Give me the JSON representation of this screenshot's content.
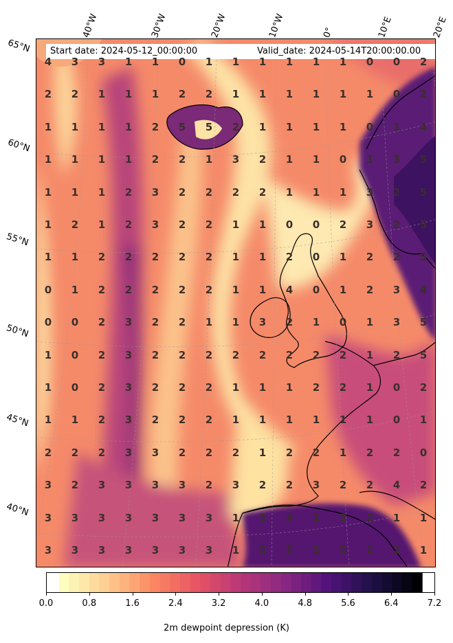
{
  "header": {
    "start_date": "Start date: 2024-05-12_00:00:00",
    "valid_date": "Valid_date: 2024-05-14T20:00:00.00"
  },
  "lon_labels": [
    "40°W",
    "30°W",
    "20°W",
    "10°W",
    "0°",
    "10°E",
    "20°E"
  ],
  "lat_labels": [
    "65°N",
    "60°N",
    "55°N",
    "50°N",
    "45°N",
    "40°N"
  ],
  "grid_values": [
    [
      4,
      3,
      3,
      1,
      1,
      0,
      1,
      1,
      1,
      1,
      1,
      1,
      0,
      0,
      2
    ],
    [
      2,
      2,
      1,
      1,
      1,
      2,
      2,
      1,
      1,
      1,
      1,
      1,
      1,
      0,
      2
    ],
    [
      1,
      1,
      1,
      1,
      2,
      5,
      5,
      2,
      1,
      1,
      1,
      1,
      0,
      1,
      4
    ],
    [
      1,
      1,
      1,
      1,
      2,
      2,
      1,
      3,
      2,
      1,
      1,
      0,
      1,
      3,
      5
    ],
    [
      1,
      1,
      1,
      2,
      3,
      2,
      2,
      2,
      2,
      1,
      1,
      1,
      3,
      2,
      5
    ],
    [
      1,
      2,
      1,
      2,
      3,
      2,
      2,
      1,
      1,
      0,
      0,
      2,
      3,
      2,
      5
    ],
    [
      1,
      1,
      2,
      2,
      2,
      2,
      2,
      1,
      1,
      2,
      0,
      1,
      2,
      2,
      5
    ],
    [
      0,
      1,
      2,
      2,
      2,
      2,
      2,
      1,
      1,
      4,
      0,
      1,
      2,
      3,
      4
    ],
    [
      0,
      0,
      2,
      3,
      2,
      2,
      1,
      1,
      3,
      2,
      1,
      0,
      1,
      3,
      5
    ],
    [
      1,
      0,
      2,
      3,
      2,
      2,
      2,
      2,
      2,
      2,
      2,
      2,
      1,
      2,
      5
    ],
    [
      1,
      0,
      2,
      3,
      2,
      2,
      2,
      1,
      1,
      1,
      2,
      2,
      1,
      0,
      2
    ],
    [
      1,
      1,
      2,
      3,
      2,
      2,
      2,
      1,
      1,
      1,
      1,
      1,
      1,
      0,
      1
    ],
    [
      2,
      2,
      2,
      3,
      3,
      2,
      2,
      2,
      1,
      2,
      2,
      1,
      2,
      2,
      0
    ],
    [
      3,
      2,
      3,
      3,
      3,
      3,
      2,
      3,
      2,
      2,
      3,
      2,
      2,
      4,
      2
    ],
    [
      3,
      3,
      3,
      3,
      3,
      3,
      3,
      1,
      3,
      4,
      1,
      5,
      2,
      1,
      1
    ],
    [
      3,
      3,
      3,
      3,
      3,
      3,
      3,
      1,
      5,
      5,
      5,
      5,
      2,
      2,
      1
    ]
  ],
  "colorbar": {
    "title": "2m dewpoint depression (K)",
    "tick_labels": [
      "0.0",
      "0.8",
      "1.6",
      "2.4",
      "3.2",
      "4.0",
      "4.8",
      "5.6",
      "6.4",
      "7.2"
    ],
    "min": 0.0,
    "max": 7.2,
    "levels": 36,
    "colormap": "magma_r"
  }
}
